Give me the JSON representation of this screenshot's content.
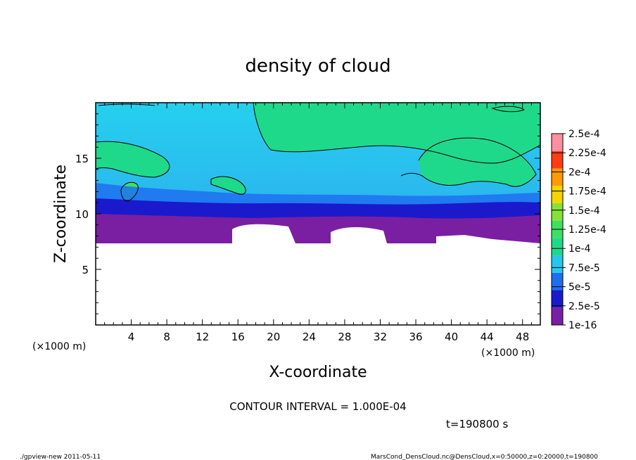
{
  "chart_data": {
    "type": "heatmap",
    "title": "density of cloud",
    "xlabel": "X-coordinate",
    "ylabel": "Z-coordinate",
    "x_unit": "(×1000 m)",
    "y_unit": "(×1000 m)",
    "xlim": [
      0,
      50
    ],
    "ylim": [
      0,
      20
    ],
    "x_ticks": [
      4,
      8,
      12,
      16,
      20,
      24,
      28,
      32,
      36,
      40,
      44,
      48
    ],
    "y_ticks": [
      5,
      10,
      15
    ],
    "colorbar": {
      "levels": [
        "1e-16",
        "2.5e-5",
        "5e-5",
        "7.5e-5",
        "1e-4",
        "1.25e-4",
        "1.5e-4",
        "1.75e-4",
        "2e-4",
        "2.25e-4",
        "2.5e-4"
      ],
      "colors": [
        "#7b1fa2",
        "#1a1acc",
        "#1e6ef0",
        "#26c7ee",
        "#1fd98a",
        "#3ee063",
        "#86e23a",
        "#f3d500",
        "#ff9a00",
        "#ff3c16",
        "#ff8fa0"
      ]
    },
    "contour_interval": "CONTOUR INTERVAL = 1.000E-04",
    "time_label": "t=190800 s"
  },
  "footer": {
    "left": "./gpview-new  2011-05-11",
    "right": "MarsCond_DensCloud.nc@DensCloud,x=0:50000,z=0:20000,t=190800"
  }
}
